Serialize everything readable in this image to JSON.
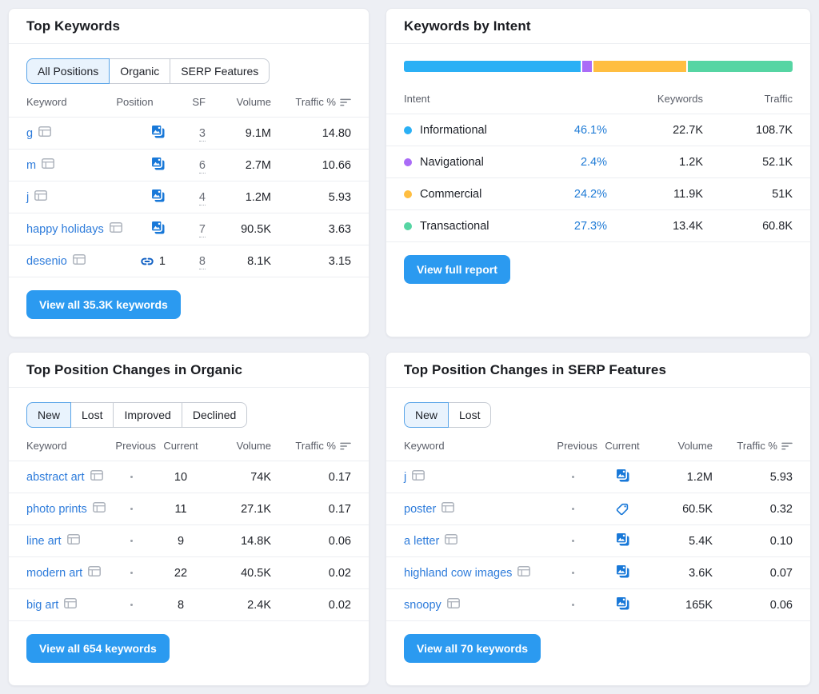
{
  "colors": {
    "accent_button": "#2B9AF0",
    "link_blue": "#2E7CDB",
    "percent_link_blue": "#1F7BD6",
    "icon_blue": "#1878D8",
    "page_background": "#EDEFF4"
  },
  "panels": {
    "topKeywords": {
      "title": "Top Keywords",
      "tabs": [
        "All Positions",
        "Organic",
        "SERP Features"
      ],
      "active_tab": "All Positions",
      "columns": {
        "keyword": "Keyword",
        "position": "Position",
        "sf": "SF",
        "volume": "Volume",
        "traffic": "Traffic %"
      },
      "rows": [
        {
          "keyword": "g",
          "position_icon": "images-pack",
          "sf": "3",
          "volume": "9.1M",
          "traffic": "14.80"
        },
        {
          "keyword": "m",
          "position_icon": "images-pack",
          "sf": "6",
          "volume": "2.7M",
          "traffic": "10.66"
        },
        {
          "keyword": "j",
          "position_icon": "images-pack",
          "sf": "4",
          "volume": "1.2M",
          "traffic": "5.93"
        },
        {
          "keyword": "happy holidays",
          "position_icon": "images-pack",
          "sf": "7",
          "volume": "90.5K",
          "traffic": "3.63"
        },
        {
          "keyword": "desenio",
          "position_icon": "sitelinks",
          "position_value": "1",
          "sf": "8",
          "volume": "8.1K",
          "traffic": "3.15"
        }
      ],
      "button": "View all 35.3K keywords"
    },
    "keywordsByIntent": {
      "title": "Keywords by Intent",
      "columns": {
        "intent": "Intent",
        "keywords": "Keywords",
        "traffic": "Traffic"
      },
      "rows": [
        {
          "intent": "Informational",
          "color": "#2BB0F5",
          "percent": "46.1%",
          "keywords": "22.7K",
          "traffic": "108.7K"
        },
        {
          "intent": "Navigational",
          "color": "#AA6CF7",
          "percent": "2.4%",
          "keywords": "1.2K",
          "traffic": "52.1K"
        },
        {
          "intent": "Commercial",
          "color": "#FFBE41",
          "percent": "24.2%",
          "keywords": "11.9K",
          "traffic": "51K"
        },
        {
          "intent": "Transactional",
          "color": "#56D5A3",
          "percent": "27.3%",
          "keywords": "13.4K",
          "traffic": "60.8K"
        }
      ],
      "button": "View full report"
    },
    "organicChanges": {
      "title": "Top Position Changes in Organic",
      "tabs": [
        "New",
        "Lost",
        "Improved",
        "Declined"
      ],
      "active_tab": "New",
      "columns": {
        "keyword": "Keyword",
        "previous": "Previous",
        "current": "Current",
        "volume": "Volume",
        "traffic": "Traffic %"
      },
      "rows": [
        {
          "keyword": "abstract art",
          "previous": "•",
          "current": "10",
          "volume": "74K",
          "traffic": "0.17"
        },
        {
          "keyword": "photo prints",
          "previous": "•",
          "current": "11",
          "volume": "27.1K",
          "traffic": "0.17"
        },
        {
          "keyword": "line art",
          "previous": "•",
          "current": "9",
          "volume": "14.8K",
          "traffic": "0.06"
        },
        {
          "keyword": "modern art",
          "previous": "•",
          "current": "22",
          "volume": "40.5K",
          "traffic": "0.02"
        },
        {
          "keyword": "big art",
          "previous": "•",
          "current": "8",
          "volume": "2.4K",
          "traffic": "0.02"
        }
      ],
      "button": "View all 654 keywords"
    },
    "serpChanges": {
      "title": "Top Position Changes in SERP Features",
      "tabs": [
        "New",
        "Lost"
      ],
      "active_tab": "New",
      "columns": {
        "keyword": "Keyword",
        "previous": "Previous",
        "current": "Current",
        "volume": "Volume",
        "traffic": "Traffic %"
      },
      "rows": [
        {
          "keyword": "j",
          "previous": "•",
          "current_icon": "images-pack",
          "volume": "1.2M",
          "traffic": "5.93"
        },
        {
          "keyword": "poster",
          "previous": "•",
          "current_icon": "price-tag",
          "volume": "60.5K",
          "traffic": "0.32"
        },
        {
          "keyword": "a letter",
          "previous": "•",
          "current_icon": "images-pack",
          "volume": "5.4K",
          "traffic": "0.10"
        },
        {
          "keyword": "highland cow images",
          "previous": "•",
          "current_icon": "images-pack",
          "volume": "3.6K",
          "traffic": "0.07"
        },
        {
          "keyword": "snoopy",
          "previous": "•",
          "current_icon": "images-pack",
          "volume": "165K",
          "traffic": "0.06"
        }
      ],
      "button": "View all 70 keywords"
    }
  }
}
